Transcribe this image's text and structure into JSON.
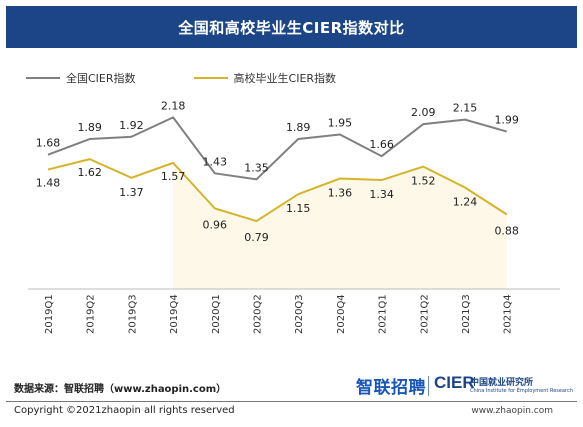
{
  "header": {
    "title": "全国和高校毕业生CIER指数对比"
  },
  "footer": {
    "source": "数据来源：智联招聘（www.zhaopin.com）",
    "copyright": "Copyright ©2021zhaopin all rights reserved",
    "website": "www.zhaopin.com",
    "logo_zhaopin": "智联招聘",
    "logo_cier": "CIER",
    "logo_cier_cn": "中国就业研究所",
    "logo_cier_en": "China Institute for Employment Research"
  },
  "colors": {
    "title_bg": "#1c4587",
    "national": "#808080",
    "graduate": "#d4b42a",
    "area_fill": "#fbf3d6"
  },
  "chart_data": {
    "type": "line",
    "title": "全国和高校毕业生CIER指数对比",
    "xlabel": "",
    "ylabel": "",
    "ylim": [
      0,
      2.4
    ],
    "grid": false,
    "legend": "top-left",
    "categories": [
      "2019Q1",
      "2019Q2",
      "2019Q3",
      "2019Q4",
      "2020Q1",
      "2020Q2",
      "2020Q3",
      "2020Q4",
      "2021Q1",
      "2021Q2",
      "2021Q3",
      "2021Q4"
    ],
    "series": [
      {
        "name": "全国CIER指数",
        "color": "#808080",
        "values": [
          1.68,
          1.89,
          1.92,
          2.18,
          1.43,
          1.35,
          1.89,
          1.95,
          1.66,
          2.09,
          2.15,
          1.99
        ]
      },
      {
        "name": "高校毕业生CIER指数",
        "color": "#d4b42a",
        "values": [
          1.48,
          1.62,
          1.37,
          1.57,
          0.96,
          0.79,
          1.15,
          1.36,
          1.34,
          1.52,
          1.24,
          0.88
        ]
      }
    ]
  }
}
